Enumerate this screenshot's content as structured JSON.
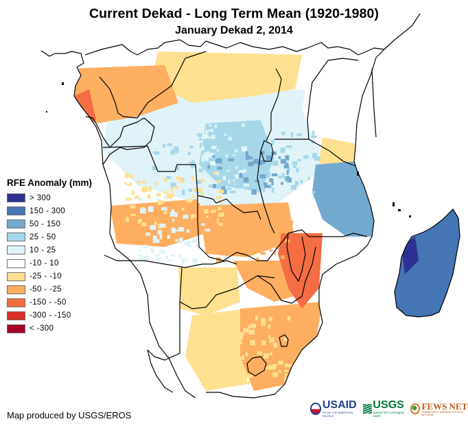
{
  "title": "Current Dekad - Long Term Mean (1920-1980)",
  "subtitle": "January Dekad 2, 2014",
  "legend": {
    "title": "RFE Anomaly (mm)",
    "classes": [
      {
        "label": "> 300",
        "color": "#2e3192"
      },
      {
        "label": "150 - 300",
        "color": "#4575b4"
      },
      {
        "label": "50 - 150",
        "color": "#74a9cf"
      },
      {
        "label": "25 - 50",
        "color": "#a6d8ea"
      },
      {
        "label": "10 - 25",
        "color": "#e0f3f8"
      },
      {
        "label": "-10 - 10",
        "color": "#ffffff"
      },
      {
        "label": "-25 - -10",
        "color": "#fee090"
      },
      {
        "label": "-50 - -25",
        "color": "#fdae61"
      },
      {
        "label": "-150 - -50",
        "color": "#f46d43"
      },
      {
        "label": "-300 - -150",
        "color": "#d73027"
      },
      {
        "label": "< -300",
        "color": "#a50026"
      }
    ]
  },
  "credit": "Map produced by USGS/EROS",
  "logos": {
    "usaid": {
      "name": "USAID",
      "tagline": "FROM THE AMERICAN PEOPLE"
    },
    "usgs": {
      "name": "USGS",
      "tagline": "science for a changing world"
    },
    "fewsnet": {
      "name": "FEWS NET",
      "tagline": "FAMINE EARLY WARNING SYSTEMS NETWORK"
    }
  },
  "map": {
    "region": "Sub-Saharan Africa (central, eastern and southern) and Madagascar",
    "anomaly_summary": [
      {
        "area": "Madagascar",
        "class": "150 - 300"
      },
      {
        "area": "Madagascar east coast",
        "class": "150 - 300"
      },
      {
        "area": "Madagascar northwest",
        "class": "> 300"
      },
      {
        "area": "Tanzania / Mozambique north coast",
        "class": "50 - 150"
      },
      {
        "area": "DR Congo central",
        "class": "25 - 50"
      },
      {
        "area": "Congo basin",
        "class": "10 - 25"
      },
      {
        "area": "Cameroon / Gabon coast",
        "class": "-50 - -25"
      },
      {
        "area": "Gabon coast",
        "class": "-150 - -50"
      },
      {
        "area": "Central African Republic",
        "class": "-25 - -10"
      },
      {
        "area": "Angola central",
        "class": "-50 - -25"
      },
      {
        "area": "Zambia",
        "class": "-50 - -25"
      },
      {
        "area": "Malawi / central Mozambique",
        "class": "-150 - -50"
      },
      {
        "area": "Zimbabwe",
        "class": "-50 - -25"
      },
      {
        "area": "Botswana",
        "class": "-25 - -10"
      },
      {
        "area": "South Africa east",
        "class": "-50 - -25"
      },
      {
        "area": "South Africa interior",
        "class": "-25 - -10"
      },
      {
        "area": "Namibia / western South Africa",
        "class": "-10 - 10"
      },
      {
        "area": "Kenya / Somalia",
        "class": "-10 - 10"
      },
      {
        "area": "Kenya coast",
        "class": "-25 - -10"
      }
    ]
  }
}
